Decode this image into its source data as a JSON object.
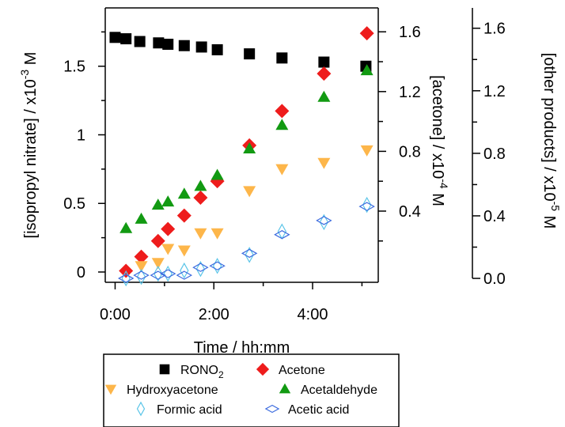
{
  "chart_data": {
    "type": "scatter",
    "title": "",
    "xlabel": "Time / hh:mm",
    "x_unit": "hours",
    "xlim": [
      -0.2,
      5.33
    ],
    "x_ticks": [
      {
        "value": 0,
        "label": "0:00"
      },
      {
        "value": 2,
        "label": "2:00"
      },
      {
        "value": 4,
        "label": "4:00"
      }
    ],
    "left_axis": {
      "label_main": "[isopropyl nitrate] / x10",
      "label_exp": "-3",
      "label_unit": " M",
      "range": [
        -0.075,
        1.925
      ],
      "ticks": [
        {
          "value": 0,
          "label": "0"
        },
        {
          "value": 0.5,
          "label": "0.5"
        },
        {
          "value": 1,
          "label": "1"
        },
        {
          "value": 1.5,
          "label": "1.5"
        }
      ]
    },
    "acetone_axis": {
      "label_main": "[acetone] / x10",
      "label_exp": "-4",
      "label_unit": " M",
      "range": [
        -0.0765,
        1.76
      ],
      "ticks": [
        {
          "value": 0.4,
          "label": "0.4"
        },
        {
          "value": 0.8,
          "label": "0.8"
        },
        {
          "value": 1.2,
          "label": "1.2"
        },
        {
          "value": 1.6,
          "label": "1.6"
        }
      ],
      "minor_ticks": [
        0.2,
        0.6,
        1.0,
        1.4
      ]
    },
    "products_axis": {
      "label_main": "[other products] / x10",
      "label_exp": "-5",
      "label_unit": " M",
      "range": [
        -0.025,
        1.73
      ],
      "ticks": [
        {
          "value": 0.0,
          "label": "0.0"
        },
        {
          "value": 0.4,
          "label": "0.4"
        },
        {
          "value": 0.8,
          "label": "0.8"
        },
        {
          "value": 1.2,
          "label": "1.2"
        },
        {
          "value": 1.6,
          "label": "1.6"
        }
      ],
      "minor_ticks": [
        0.2,
        0.6,
        1.0,
        1.4
      ]
    },
    "series": [
      {
        "name": "RONO",
        "name_sub": "2",
        "axis": "left",
        "marker": "square",
        "color": "#000000",
        "points": [
          [
            0,
            1.71
          ],
          [
            0.22,
            1.7
          ],
          [
            0.5,
            1.68
          ],
          [
            0.88,
            1.67
          ],
          [
            1.07,
            1.66
          ],
          [
            1.4,
            1.65
          ],
          [
            1.75,
            1.64
          ],
          [
            2.07,
            1.62
          ],
          [
            2.72,
            1.59
          ],
          [
            3.38,
            1.56
          ],
          [
            4.23,
            1.53
          ],
          [
            5.08,
            1.5
          ]
        ]
      },
      {
        "name": "Acetone",
        "axis": "acetone",
        "marker": "diamond",
        "color": "#ee1c1c",
        "points": [
          [
            0.22,
            0.0
          ],
          [
            0.53,
            0.095
          ],
          [
            0.87,
            0.2
          ],
          [
            1.07,
            0.28
          ],
          [
            1.4,
            0.37
          ],
          [
            1.73,
            0.49
          ],
          [
            2.07,
            0.6
          ],
          [
            2.72,
            0.84
          ],
          [
            3.38,
            1.07
          ],
          [
            4.23,
            1.32
          ],
          [
            5.1,
            1.59
          ]
        ]
      },
      {
        "name": "Hydroxyacetone",
        "axis": "products",
        "marker": "triangle-down",
        "color": "#fdb64a",
        "points": [
          [
            0.53,
            0.08
          ],
          [
            0.87,
            0.1
          ],
          [
            1.07,
            0.19
          ],
          [
            1.4,
            0.18
          ],
          [
            1.73,
            0.29
          ],
          [
            2.07,
            0.29
          ],
          [
            2.72,
            0.56
          ],
          [
            3.38,
            0.7
          ],
          [
            4.23,
            0.74
          ],
          [
            5.1,
            0.82
          ]
        ]
      },
      {
        "name": "Acetaldehyde",
        "axis": "products",
        "marker": "triangle-up",
        "color": "#129a12",
        "points": [
          [
            0.22,
            0.32
          ],
          [
            0.53,
            0.38
          ],
          [
            0.87,
            0.47
          ],
          [
            1.07,
            0.49
          ],
          [
            1.4,
            0.54
          ],
          [
            1.73,
            0.59
          ],
          [
            2.07,
            0.66
          ],
          [
            2.72,
            0.83
          ],
          [
            3.38,
            0.98
          ],
          [
            4.23,
            1.16
          ],
          [
            5.1,
            1.33
          ]
        ]
      },
      {
        "name": "Formic acid",
        "axis": "products",
        "marker": "diamond-thin-open",
        "color": "#5bc5e8",
        "points": [
          [
            0.22,
            0.0
          ],
          [
            0.53,
            0.01
          ],
          [
            0.87,
            0.03
          ],
          [
            1.07,
            0.03
          ],
          [
            1.4,
            0.05
          ],
          [
            1.73,
            0.06
          ],
          [
            2.07,
            0.08
          ],
          [
            2.72,
            0.15
          ],
          [
            3.38,
            0.3
          ],
          [
            4.23,
            0.36
          ],
          [
            5.1,
            0.47
          ]
        ]
      },
      {
        "name": "Acetic acid",
        "axis": "products",
        "marker": "diamond-wide-open",
        "color": "#3c6bdf",
        "points": [
          [
            0.22,
            0.0
          ],
          [
            0.53,
            0.02
          ],
          [
            0.87,
            0.02
          ],
          [
            1.07,
            0.03
          ],
          [
            1.4,
            0.02
          ],
          [
            1.73,
            0.07
          ],
          [
            2.07,
            0.08
          ],
          [
            2.72,
            0.16
          ],
          [
            3.38,
            0.28
          ],
          [
            4.23,
            0.37
          ],
          [
            5.1,
            0.46
          ]
        ]
      }
    ],
    "legend": {
      "placement": "bottom",
      "rows": [
        [
          "RONO2",
          "Acetone"
        ],
        [
          "Hydroxyacetone",
          "Acetaldehyde"
        ],
        [
          "Formic acid",
          "Acetic acid"
        ]
      ]
    }
  }
}
